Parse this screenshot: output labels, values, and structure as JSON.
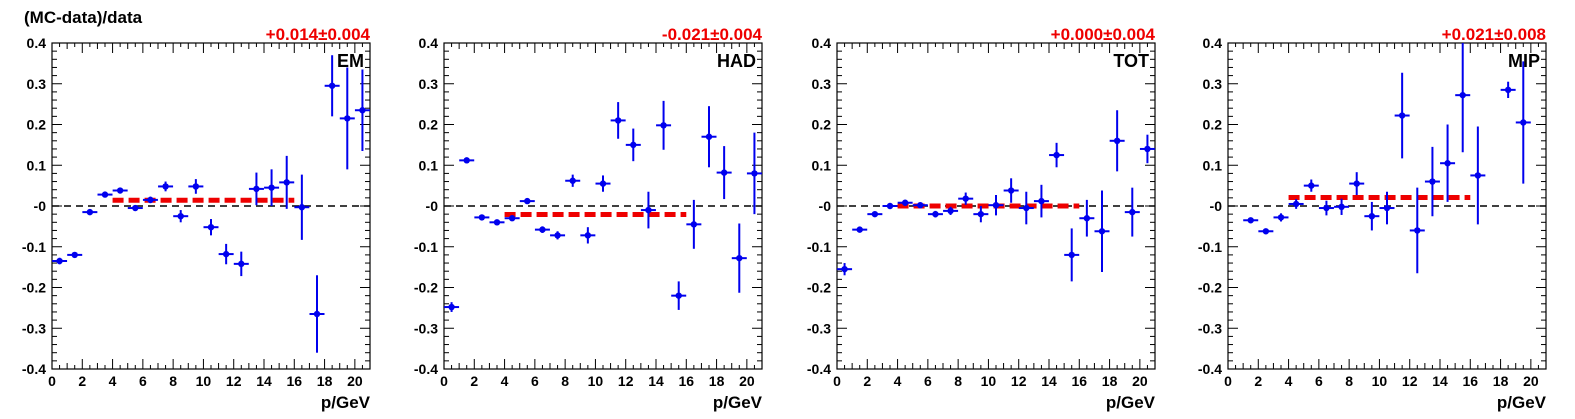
{
  "figure": {
    "ylabel": "(MC-data)/data",
    "xlabel": "p/GeV"
  },
  "colors": {
    "points": "#0000ee",
    "fit": "#ee0000",
    "fit_text": "#ee0000",
    "zero_line": "#000000"
  },
  "chart_data": [
    {
      "type": "scatter",
      "name": "EM",
      "fit_label": "+0.014±0.004",
      "fit": {
        "value": 0.014,
        "x_range": [
          4,
          16
        ]
      },
      "xlabel": "p/GeV",
      "ylabel": "(MC-data)/data",
      "xlim": [
        0,
        21
      ],
      "ylim": [
        -0.4,
        0.4
      ],
      "x_ticks": [
        0,
        2,
        4,
        6,
        8,
        10,
        12,
        14,
        16,
        18,
        20
      ],
      "y_ticks": [
        "0.4",
        "0.3",
        "0.2",
        "0.1",
        "-0",
        "-0.1",
        "-0.2",
        "-0.3",
        "-0.4"
      ],
      "zero_line": true,
      "points": [
        {
          "x": 0.5,
          "y": -0.135,
          "err": 0.008
        },
        {
          "x": 1.5,
          "y": -0.12,
          "err": 0.006
        },
        {
          "x": 2.5,
          "y": -0.015,
          "err": 0.006
        },
        {
          "x": 3.5,
          "y": 0.028,
          "err": 0.006
        },
        {
          "x": 4.5,
          "y": 0.038,
          "err": 0.007
        },
        {
          "x": 5.5,
          "y": -0.005,
          "err": 0.007
        },
        {
          "x": 6.5,
          "y": 0.015,
          "err": 0.008
        },
        {
          "x": 7.5,
          "y": 0.048,
          "err": 0.012
        },
        {
          "x": 8.5,
          "y": -0.025,
          "err": 0.015
        },
        {
          "x": 9.5,
          "y": 0.048,
          "err": 0.018
        },
        {
          "x": 10.5,
          "y": -0.052,
          "err": 0.02
        },
        {
          "x": 11.5,
          "y": -0.118,
          "err": 0.025
        },
        {
          "x": 12.5,
          "y": -0.142,
          "err": 0.03
        },
        {
          "x": 13.5,
          "y": 0.042,
          "err": 0.04
        },
        {
          "x": 14.5,
          "y": 0.045,
          "err": 0.045
        },
        {
          "x": 15.5,
          "y": 0.058,
          "err": 0.065
        },
        {
          "x": 16.5,
          "y": -0.003,
          "err": 0.08
        },
        {
          "x": 17.5,
          "y": -0.265,
          "err": 0.095
        },
        {
          "x": 18.5,
          "y": 0.295,
          "err": 0.075
        },
        {
          "x": 19.5,
          "y": 0.215,
          "err": 0.125
        },
        {
          "x": 20.5,
          "y": 0.235,
          "err": 0.1
        }
      ]
    },
    {
      "type": "scatter",
      "name": "HAD",
      "fit_label": "-0.021±0.004",
      "fit": {
        "value": -0.021,
        "x_range": [
          4,
          16
        ]
      },
      "xlabel": "p/GeV",
      "ylabel": "",
      "xlim": [
        0,
        21
      ],
      "ylim": [
        -0.4,
        0.4
      ],
      "x_ticks": [
        0,
        2,
        4,
        6,
        8,
        10,
        12,
        14,
        16,
        18,
        20
      ],
      "y_ticks": [
        "0.4",
        "0.3",
        "0.2",
        "0.1",
        "-0",
        "-0.1",
        "-0.2",
        "-0.3",
        "-0.4"
      ],
      "zero_line": true,
      "points": [
        {
          "x": 0.5,
          "y": -0.248,
          "err": 0.012
        },
        {
          "x": 1.5,
          "y": 0.112,
          "err": 0.006
        },
        {
          "x": 2.5,
          "y": -0.028,
          "err": 0.005
        },
        {
          "x": 3.5,
          "y": -0.04,
          "err": 0.005
        },
        {
          "x": 4.5,
          "y": -0.03,
          "err": 0.006
        },
        {
          "x": 5.5,
          "y": 0.012,
          "err": 0.007
        },
        {
          "x": 6.5,
          "y": -0.058,
          "err": 0.008
        },
        {
          "x": 7.5,
          "y": -0.072,
          "err": 0.01
        },
        {
          "x": 8.5,
          "y": 0.062,
          "err": 0.015
        },
        {
          "x": 9.5,
          "y": -0.072,
          "err": 0.02
        },
        {
          "x": 10.5,
          "y": 0.055,
          "err": 0.02
        },
        {
          "x": 11.5,
          "y": 0.21,
          "err": 0.045
        },
        {
          "x": 12.5,
          "y": 0.15,
          "err": 0.04
        },
        {
          "x": 13.5,
          "y": -0.01,
          "err": 0.045
        },
        {
          "x": 14.5,
          "y": 0.198,
          "err": 0.06
        },
        {
          "x": 15.5,
          "y": -0.22,
          "err": 0.035
        },
        {
          "x": 16.5,
          "y": -0.045,
          "err": 0.06
        },
        {
          "x": 17.5,
          "y": 0.17,
          "err": 0.075
        },
        {
          "x": 18.5,
          "y": 0.082,
          "err": 0.065
        },
        {
          "x": 19.5,
          "y": -0.128,
          "err": 0.085
        },
        {
          "x": 20.5,
          "y": 0.08,
          "err": 0.1
        }
      ]
    },
    {
      "type": "scatter",
      "name": "TOT",
      "fit_label": "+0.000±0.004",
      "fit": {
        "value": 0.0,
        "x_range": [
          4,
          16
        ]
      },
      "xlabel": "p/GeV",
      "ylabel": "",
      "xlim": [
        0,
        21
      ],
      "ylim": [
        -0.4,
        0.4
      ],
      "x_ticks": [
        0,
        2,
        4,
        6,
        8,
        10,
        12,
        14,
        16,
        18,
        20
      ],
      "y_ticks": [
        "0.4",
        "0.3",
        "0.2",
        "0.1",
        "-0",
        "-0.1",
        "-0.2",
        "-0.3",
        "-0.4"
      ],
      "zero_line": true,
      "points": [
        {
          "x": 0.5,
          "y": -0.155,
          "err": 0.015
        },
        {
          "x": 1.5,
          "y": -0.058,
          "err": 0.006
        },
        {
          "x": 2.5,
          "y": -0.02,
          "err": 0.005
        },
        {
          "x": 3.5,
          "y": 0.0,
          "err": 0.004
        },
        {
          "x": 4.5,
          "y": 0.008,
          "err": 0.005
        },
        {
          "x": 5.5,
          "y": 0.002,
          "err": 0.006
        },
        {
          "x": 6.5,
          "y": -0.02,
          "err": 0.008
        },
        {
          "x": 7.5,
          "y": -0.012,
          "err": 0.01
        },
        {
          "x": 8.5,
          "y": 0.018,
          "err": 0.015
        },
        {
          "x": 9.5,
          "y": -0.02,
          "err": 0.02
        },
        {
          "x": 10.5,
          "y": 0.002,
          "err": 0.025
        },
        {
          "x": 11.5,
          "y": 0.038,
          "err": 0.03
        },
        {
          "x": 12.5,
          "y": -0.005,
          "err": 0.04
        },
        {
          "x": 13.5,
          "y": 0.012,
          "err": 0.04
        },
        {
          "x": 14.5,
          "y": 0.125,
          "err": 0.03
        },
        {
          "x": 15.5,
          "y": -0.12,
          "err": 0.065
        },
        {
          "x": 16.5,
          "y": -0.03,
          "err": 0.045
        },
        {
          "x": 17.5,
          "y": -0.062,
          "err": 0.1
        },
        {
          "x": 18.5,
          "y": 0.16,
          "err": 0.075
        },
        {
          "x": 19.5,
          "y": -0.015,
          "err": 0.06
        },
        {
          "x": 20.5,
          "y": 0.14,
          "err": 0.035
        }
      ]
    },
    {
      "type": "scatter",
      "name": "MIP",
      "fit_label": "+0.021±0.008",
      "fit": {
        "value": 0.021,
        "x_range": [
          4,
          16
        ]
      },
      "xlabel": "p/GeV",
      "ylabel": "",
      "xlim": [
        0,
        21
      ],
      "ylim": [
        -0.4,
        0.4
      ],
      "x_ticks": [
        0,
        2,
        4,
        6,
        8,
        10,
        12,
        14,
        16,
        18,
        20
      ],
      "y_ticks": [
        "0.4",
        "0.3",
        "0.2",
        "0.1",
        "-0",
        "-0.1",
        "-0.2",
        "-0.3",
        "-0.4"
      ],
      "zero_line": true,
      "points": [
        {
          "x": 1.5,
          "y": -0.035,
          "err": 0.006
        },
        {
          "x": 2.5,
          "y": -0.062,
          "err": 0.006
        },
        {
          "x": 3.5,
          "y": -0.028,
          "err": 0.01
        },
        {
          "x": 4.5,
          "y": 0.005,
          "err": 0.012
        },
        {
          "x": 5.5,
          "y": 0.05,
          "err": 0.015
        },
        {
          "x": 6.5,
          "y": -0.005,
          "err": 0.018
        },
        {
          "x": 7.5,
          "y": -0.002,
          "err": 0.02
        },
        {
          "x": 8.5,
          "y": 0.055,
          "err": 0.028
        },
        {
          "x": 9.5,
          "y": -0.025,
          "err": 0.035
        },
        {
          "x": 10.5,
          "y": -0.005,
          "err": 0.04
        },
        {
          "x": 11.5,
          "y": 0.222,
          "err": 0.105
        },
        {
          "x": 12.5,
          "y": -0.06,
          "err": 0.105
        },
        {
          "x": 13.5,
          "y": 0.06,
          "err": 0.085
        },
        {
          "x": 14.5,
          "y": 0.105,
          "err": 0.095
        },
        {
          "x": 15.5,
          "y": 0.272,
          "err": 0.14
        },
        {
          "x": 16.5,
          "y": 0.075,
          "err": 0.12
        },
        {
          "x": 18.5,
          "y": 0.285,
          "err": 0.02
        },
        {
          "x": 19.5,
          "y": 0.205,
          "err": 0.15
        }
      ]
    }
  ]
}
